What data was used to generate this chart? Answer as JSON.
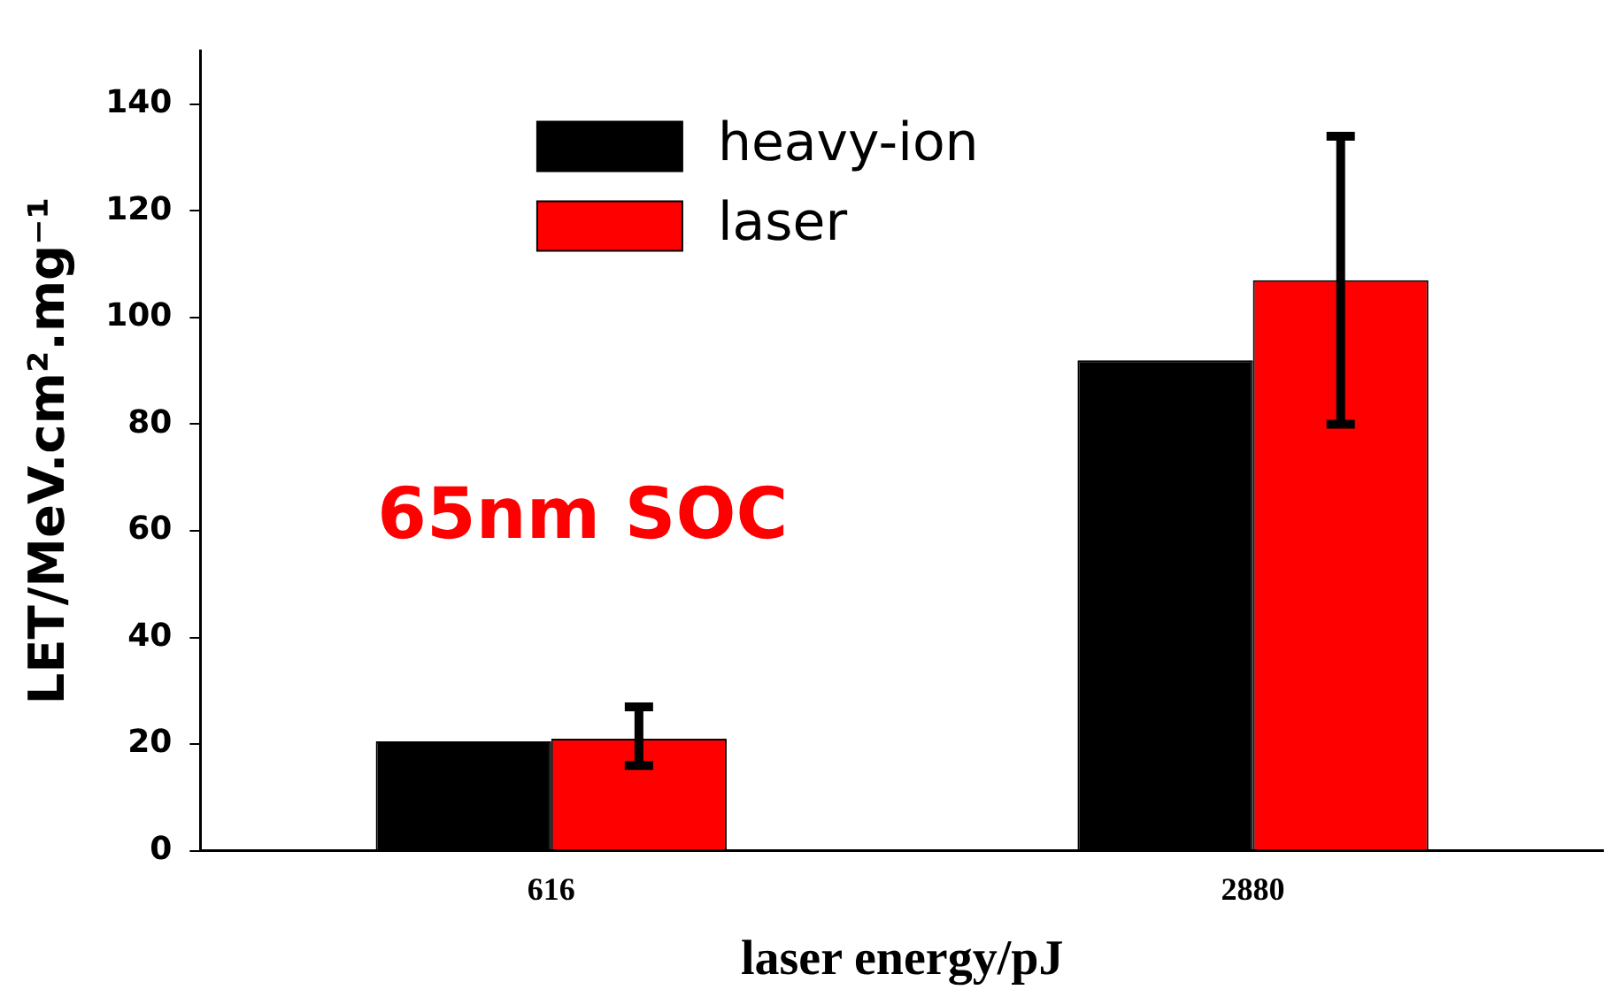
{
  "chart_data": {
    "type": "bar",
    "xlabel": "laser energy/pJ",
    "ylabel": "LET/MeV.cm².mg⁻¹",
    "categories": [
      "616",
      "2880"
    ],
    "series": [
      {
        "name": "heavy-ion",
        "color": "#000000",
        "values": [
          20.5,
          92
        ]
      },
      {
        "name": "laser",
        "color": "#ff0000",
        "values": [
          21,
          107
        ],
        "errors": [
          [
            16,
            27
          ],
          [
            80,
            134
          ]
        ]
      }
    ],
    "ylim": [
      0,
      150
    ],
    "yticks": [
      0,
      20,
      40,
      60,
      80,
      100,
      120,
      140
    ],
    "grid": false,
    "legend": "top",
    "annotations": [
      "65nm SOC"
    ]
  }
}
